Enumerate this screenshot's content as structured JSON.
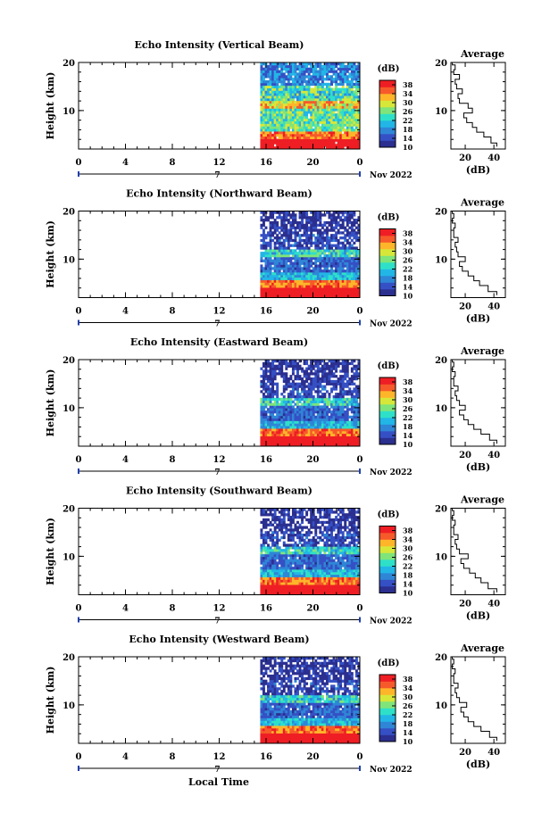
{
  "figure": {
    "xlabel": "Local Time",
    "date_label": "Nov 2022",
    "day_label": "7",
    "ylabel": "Height (km)",
    "colorbar_label": "(dB)",
    "average_title": "Average",
    "average_xlabel": "(dB)"
  },
  "colors": {
    "colormap": [
      "#2b2f8f",
      "#3550c4",
      "#2f86d6",
      "#22b6e6",
      "#2fe0c8",
      "#7fe47a",
      "#d6e73a",
      "#ffb52a",
      "#f65a2a",
      "#ee1e24"
    ],
    "day_marker": "#1f3fb0"
  },
  "chart_data": [
    {
      "type": "heatmap",
      "title": "Echo Intensity (Vertical Beam)",
      "xlabel": "",
      "ylabel": "Height (km)",
      "xlim": [
        0,
        24
      ],
      "ylim": [
        2,
        20
      ],
      "xticks": [
        "0",
        "4",
        "8",
        "12",
        "16",
        "20",
        "0"
      ],
      "yticks": [
        "10",
        "20"
      ],
      "data_start_hour": 15.5,
      "colorbar_ticks": [
        "10",
        "14",
        "18",
        "22",
        "26",
        "30",
        "34",
        "38"
      ],
      "colorbar_range": [
        10,
        40
      ],
      "profile": {
        "heights": [
          2.5,
          4,
          5,
          6,
          7,
          8,
          9,
          10,
          11,
          12,
          13,
          14,
          15,
          16,
          17,
          18,
          19,
          20
        ],
        "values": [
          42,
          38,
          33,
          28,
          25,
          21,
          19,
          25,
          22,
          16,
          15,
          18,
          14,
          13,
          16,
          12,
          13,
          11
        ]
      },
      "profile_xticks": [
        "20",
        "40"
      ],
      "profile_xlim": [
        10,
        48
      ]
    },
    {
      "type": "heatmap",
      "title": "Echo Intensity (Northward Beam)",
      "xlabel": "",
      "ylabel": "Height (km)",
      "xlim": [
        0,
        24
      ],
      "ylim": [
        2,
        20
      ],
      "xticks": [
        "0",
        "4",
        "8",
        "12",
        "16",
        "20",
        "0"
      ],
      "yticks": [
        "10",
        "20"
      ],
      "data_start_hour": 15.5,
      "colorbar_ticks": [
        "10",
        "14",
        "18",
        "22",
        "26",
        "30",
        "34",
        "38"
      ],
      "colorbar_range": [
        10,
        40
      ],
      "profile": {
        "heights": [
          2.5,
          4,
          5,
          6,
          7,
          8,
          9,
          10,
          11,
          12,
          13,
          14,
          15,
          16,
          17,
          18,
          19,
          20
        ],
        "values": [
          42,
          36,
          30,
          26,
          22,
          18,
          16,
          20,
          15,
          14,
          13,
          15,
          12,
          12,
          13,
          11,
          12,
          11
        ]
      },
      "profile_xticks": [
        "20",
        "40"
      ],
      "profile_xlim": [
        10,
        48
      ]
    },
    {
      "type": "heatmap",
      "title": "Echo Intensity (Eastward Beam)",
      "xlabel": "",
      "ylabel": "Height (km)",
      "xlim": [
        0,
        24
      ],
      "ylim": [
        2,
        20
      ],
      "xticks": [
        "0",
        "4",
        "8",
        "12",
        "16",
        "20",
        "0"
      ],
      "yticks": [
        "10",
        "20"
      ],
      "data_start_hour": 15.5,
      "colorbar_ticks": [
        "10",
        "14",
        "18",
        "22",
        "26",
        "30",
        "34",
        "38"
      ],
      "colorbar_range": [
        10,
        40
      ],
      "profile": {
        "heights": [
          2.5,
          4,
          5,
          6,
          7,
          8,
          9,
          10,
          11,
          12,
          13,
          14,
          15,
          16,
          17,
          18,
          19,
          20
        ],
        "values": [
          42,
          37,
          31,
          26,
          22,
          19,
          16,
          20,
          16,
          14,
          13,
          15,
          12,
          12,
          13,
          11,
          12,
          11
        ]
      },
      "profile_xticks": [
        "20",
        "40"
      ],
      "profile_xlim": [
        10,
        48
      ]
    },
    {
      "type": "heatmap",
      "title": "Echo Intensity (Southward Beam)",
      "xlabel": "",
      "ylabel": "Height (km)",
      "xlim": [
        0,
        24
      ],
      "ylim": [
        2,
        20
      ],
      "xticks": [
        "0",
        "4",
        "8",
        "12",
        "16",
        "20",
        "0"
      ],
      "yticks": [
        "10",
        "20"
      ],
      "data_start_hour": 15.5,
      "colorbar_ticks": [
        "10",
        "14",
        "18",
        "22",
        "26",
        "30",
        "34",
        "38"
      ],
      "colorbar_range": [
        10,
        40
      ],
      "profile": {
        "heights": [
          2.5,
          4,
          5,
          6,
          7,
          8,
          9,
          10,
          11,
          12,
          13,
          14,
          15,
          16,
          17,
          18,
          19,
          20
        ],
        "values": [
          42,
          36,
          31,
          27,
          23,
          19,
          17,
          22,
          16,
          14,
          13,
          15,
          12,
          12,
          13,
          11,
          12,
          11
        ]
      },
      "profile_xticks": [
        "20",
        "40"
      ],
      "profile_xlim": [
        10,
        48
      ]
    },
    {
      "type": "heatmap",
      "title": "Echo Intensity (Westward Beam)",
      "xlabel": "Local Time",
      "ylabel": "Height (km)",
      "xlim": [
        0,
        24
      ],
      "ylim": [
        2,
        20
      ],
      "xticks": [
        "0",
        "4",
        "8",
        "12",
        "16",
        "20",
        "0"
      ],
      "yticks": [
        "10",
        "20"
      ],
      "data_start_hour": 15.5,
      "colorbar_ticks": [
        "10",
        "14",
        "18",
        "22",
        "26",
        "30",
        "34",
        "38"
      ],
      "colorbar_range": [
        10,
        40
      ],
      "profile": {
        "heights": [
          2.5,
          4,
          5,
          6,
          7,
          8,
          9,
          10,
          11,
          12,
          13,
          14,
          15,
          16,
          17,
          18,
          19,
          20
        ],
        "values": [
          42,
          37,
          31,
          26,
          22,
          19,
          17,
          21,
          16,
          14,
          13,
          15,
          12,
          12,
          13,
          11,
          12,
          11
        ]
      },
      "profile_xticks": [
        "20",
        "40"
      ],
      "profile_xlim": [
        10,
        48
      ]
    }
  ]
}
